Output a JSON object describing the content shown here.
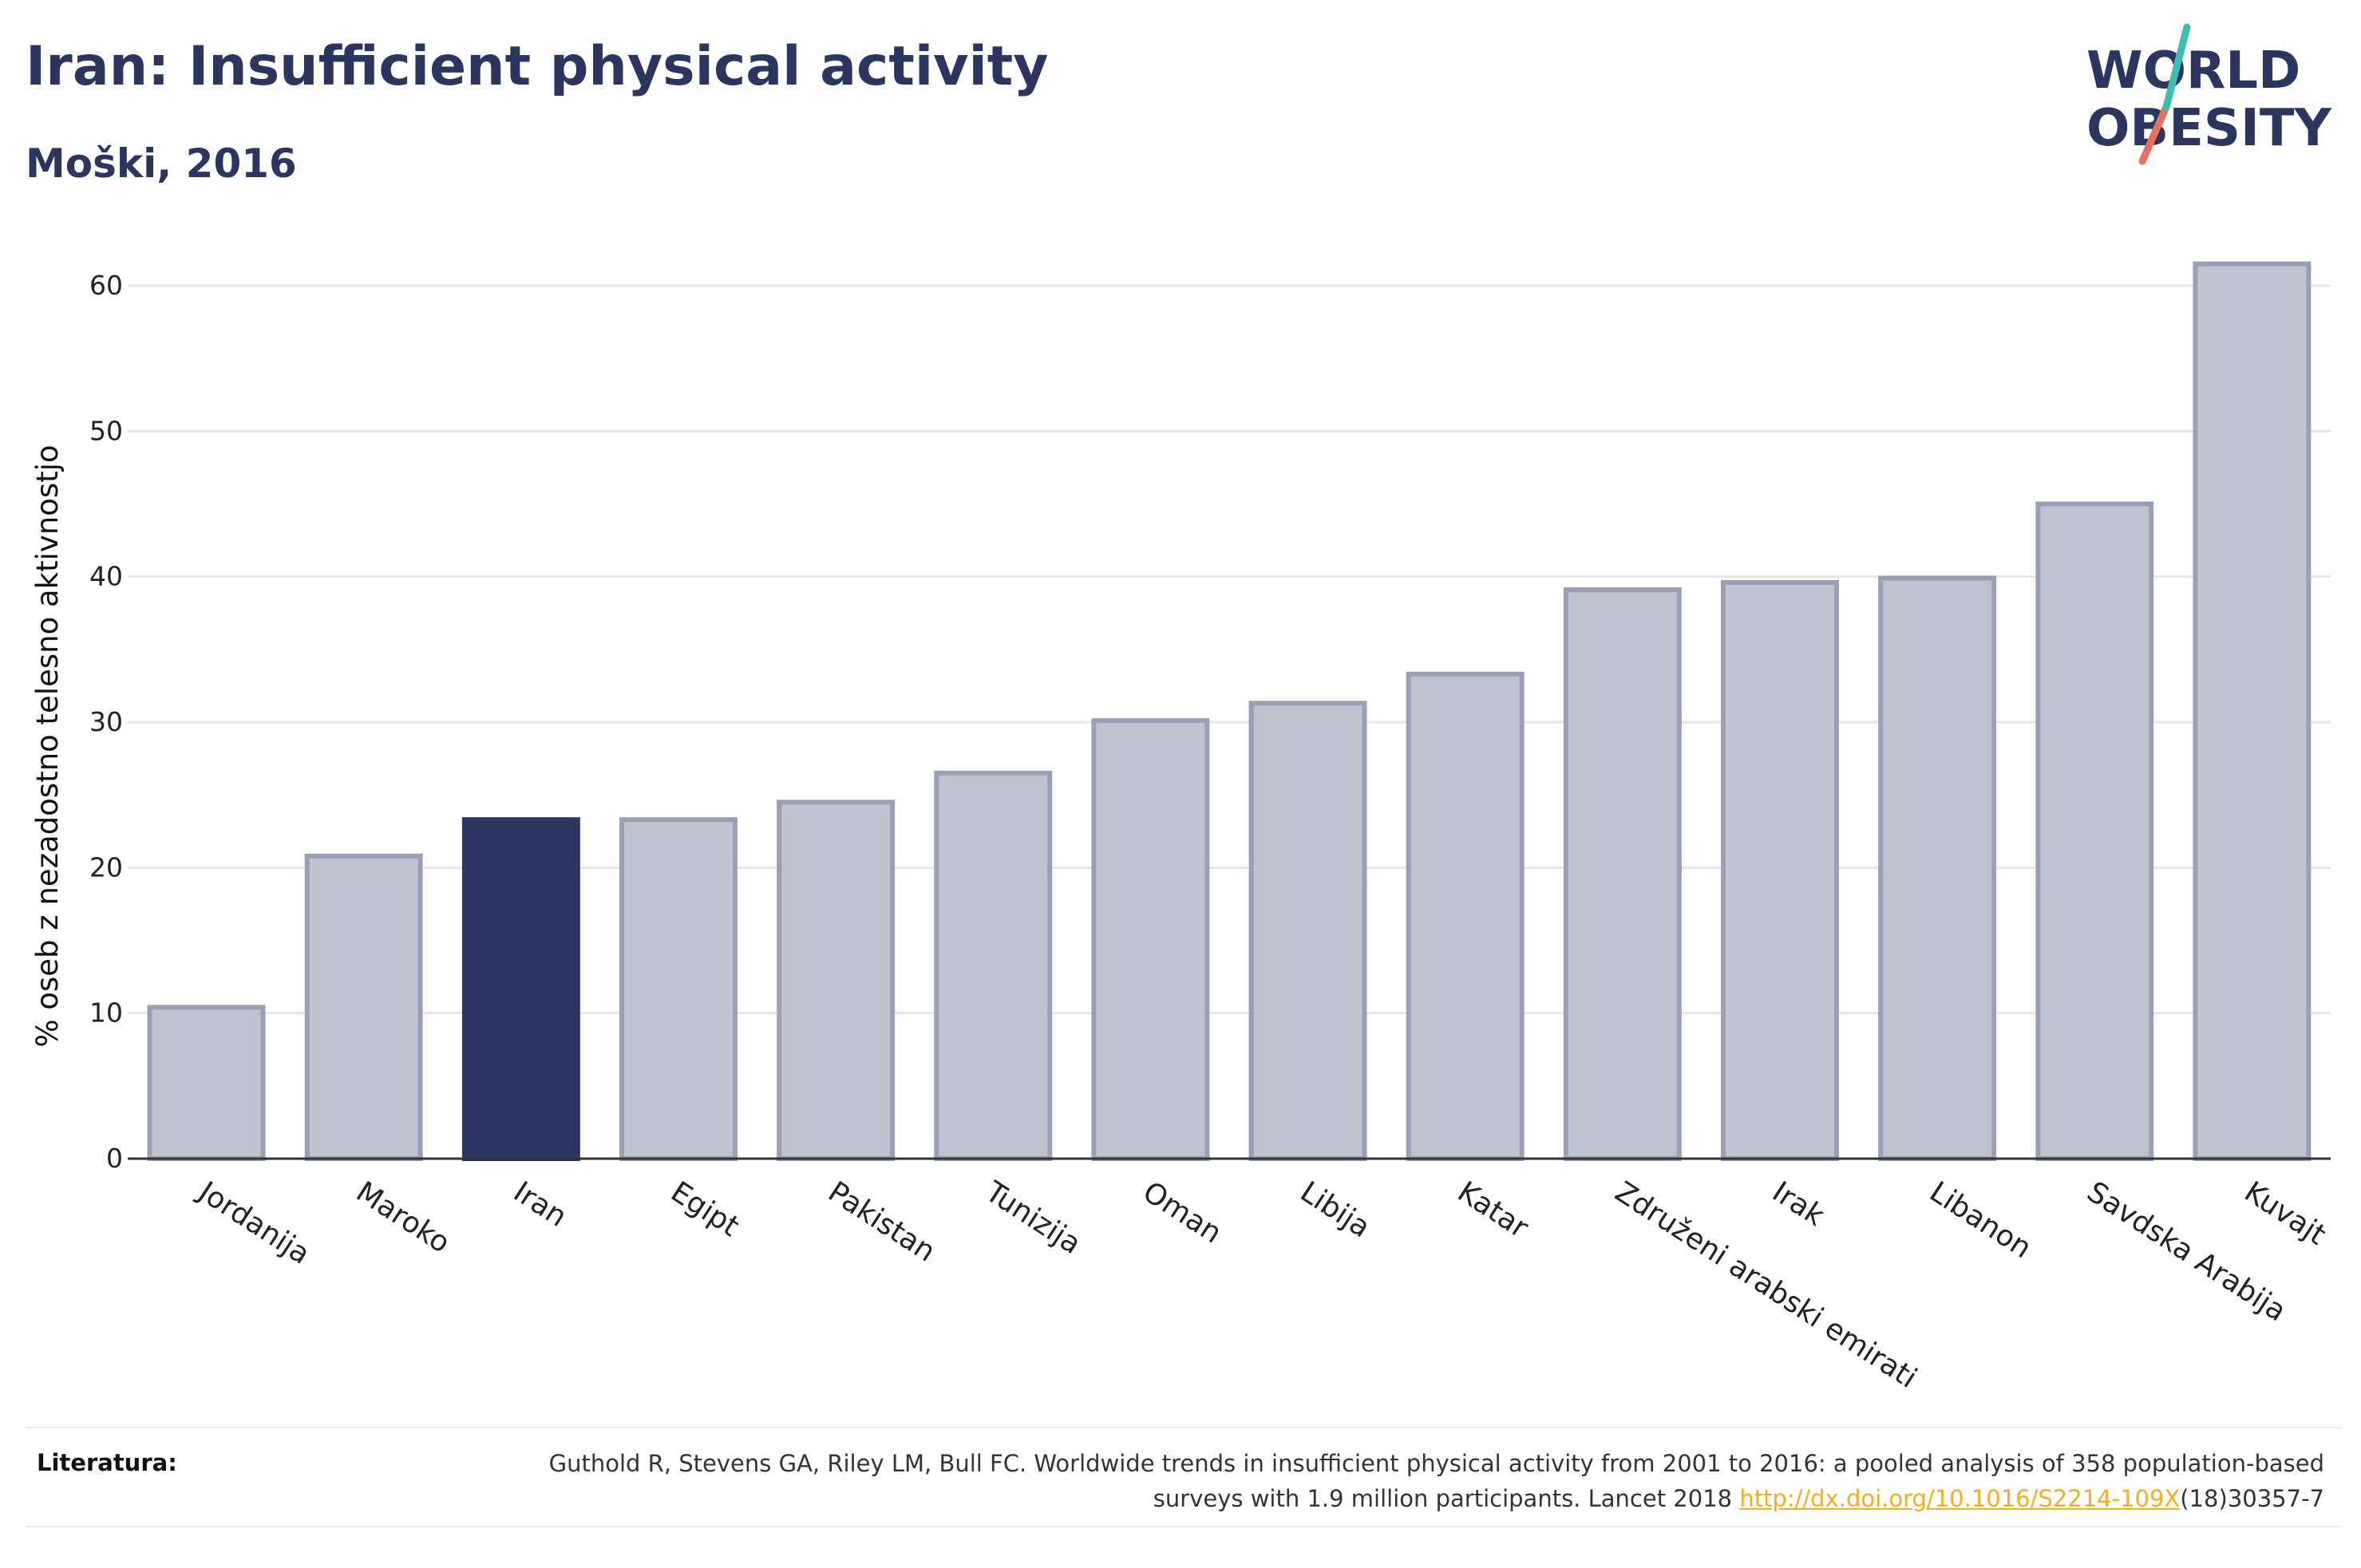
{
  "header": {
    "title": "Iran: Insufficient physical activity",
    "subtitle": "Moški, 2016"
  },
  "logo": {
    "line1": "WORLD",
    "line2": "OBESITY"
  },
  "chart_data": {
    "type": "bar",
    "title": "Iran: Insufficient physical activity",
    "subtitle": "Moški, 2016",
    "ylabel": "% oseb z nezadostno telesno aktivnostjo",
    "xlabel": "",
    "ylim": [
      0,
      65
    ],
    "yticks": [
      0,
      10,
      20,
      30,
      40,
      50,
      60
    ],
    "grid": true,
    "categories": [
      "Jordanija",
      "Maroko",
      "Iran",
      "Egipt",
      "Pakistan",
      "Tunizija",
      "Oman",
      "Libija",
      "Katar",
      "Združeni arabski emirati",
      "Irak",
      "Libanon",
      "Savdska Arabija",
      "Kuvajt"
    ],
    "values": [
      10.4,
      20.8,
      23.3,
      23.3,
      24.5,
      26.5,
      30.1,
      31.3,
      33.3,
      39.1,
      39.6,
      39.9,
      45.0,
      61.5
    ],
    "highlight": "Iran",
    "colors": {
      "bar": "#bfc3d0",
      "bar_edge": "#9a9fb6",
      "highlight": "#2a3560",
      "grid": "#e6e6e6",
      "axis": "#333333"
    }
  },
  "footer": {
    "label": "Literatura:",
    "text_before": "Guthold R, Stevens GA, Riley LM, Bull FC. Worldwide trends in insufficient physical activity from 2001 to 2016: a pooled analysis of 358 population-based surveys with 1.9 million participants. Lancet 2018 ",
    "link": "http://dx.doi.org/10.1016/S2214-109X",
    "text_after": "(18)30357-7"
  }
}
